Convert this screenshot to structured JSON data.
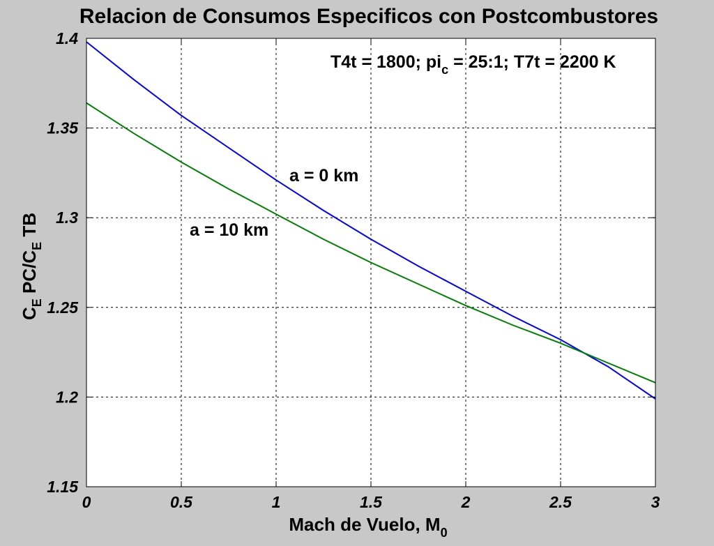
{
  "chart_data": {
    "type": "line",
    "title": "Relacion de Consumos Especificos con Postcombustores",
    "xlabel": {
      "text": "Mach de Vuelo, M",
      "sub": "0"
    },
    "ylabel": {
      "part1": "C",
      "sub1": "E",
      "part2": " PC/C",
      "sub2": "E",
      "part3": " TB"
    },
    "xlim": [
      0,
      3
    ],
    "ylim": [
      1.15,
      1.4
    ],
    "xticks": [
      0,
      0.5,
      1,
      1.5,
      2,
      2.5,
      3
    ],
    "xtick_labels": [
      "0",
      "0.5",
      "1",
      "1.5",
      "2",
      "2.5",
      "3"
    ],
    "yticks": [
      1.15,
      1.2,
      1.25,
      1.3,
      1.35,
      1.4
    ],
    "ytick_labels": [
      "1.15",
      "1.2",
      "1.25",
      "1.3",
      "1.35",
      "1.4"
    ],
    "grid": true,
    "x": [
      0,
      0.25,
      0.5,
      0.75,
      1,
      1.25,
      1.5,
      1.75,
      2,
      2.25,
      2.5,
      2.75,
      3
    ],
    "series": [
      {
        "name": "a = 0 km",
        "color": "#0000ff",
        "values": [
          1.398,
          1.377,
          1.357,
          1.339,
          1.321,
          1.304,
          1.288,
          1.273,
          1.259,
          1.245,
          1.232,
          1.217,
          1.199
        ]
      },
      {
        "name": "a = 10 km",
        "color": "#008000",
        "values": [
          1.364,
          1.347,
          1.331,
          1.316,
          1.302,
          1.288,
          1.275,
          1.263,
          1.251,
          1.24,
          1.23,
          1.219,
          1.208
        ]
      }
    ],
    "annotation": {
      "text": "T4t = 1800; pi",
      "sub": "c",
      "text_after": " = 25:1; T7t = 2200 K"
    }
  },
  "colors": {
    "figure_background": "#c8c8c8",
    "axes_background": "#ffffff",
    "grid_color": "#000000"
  }
}
